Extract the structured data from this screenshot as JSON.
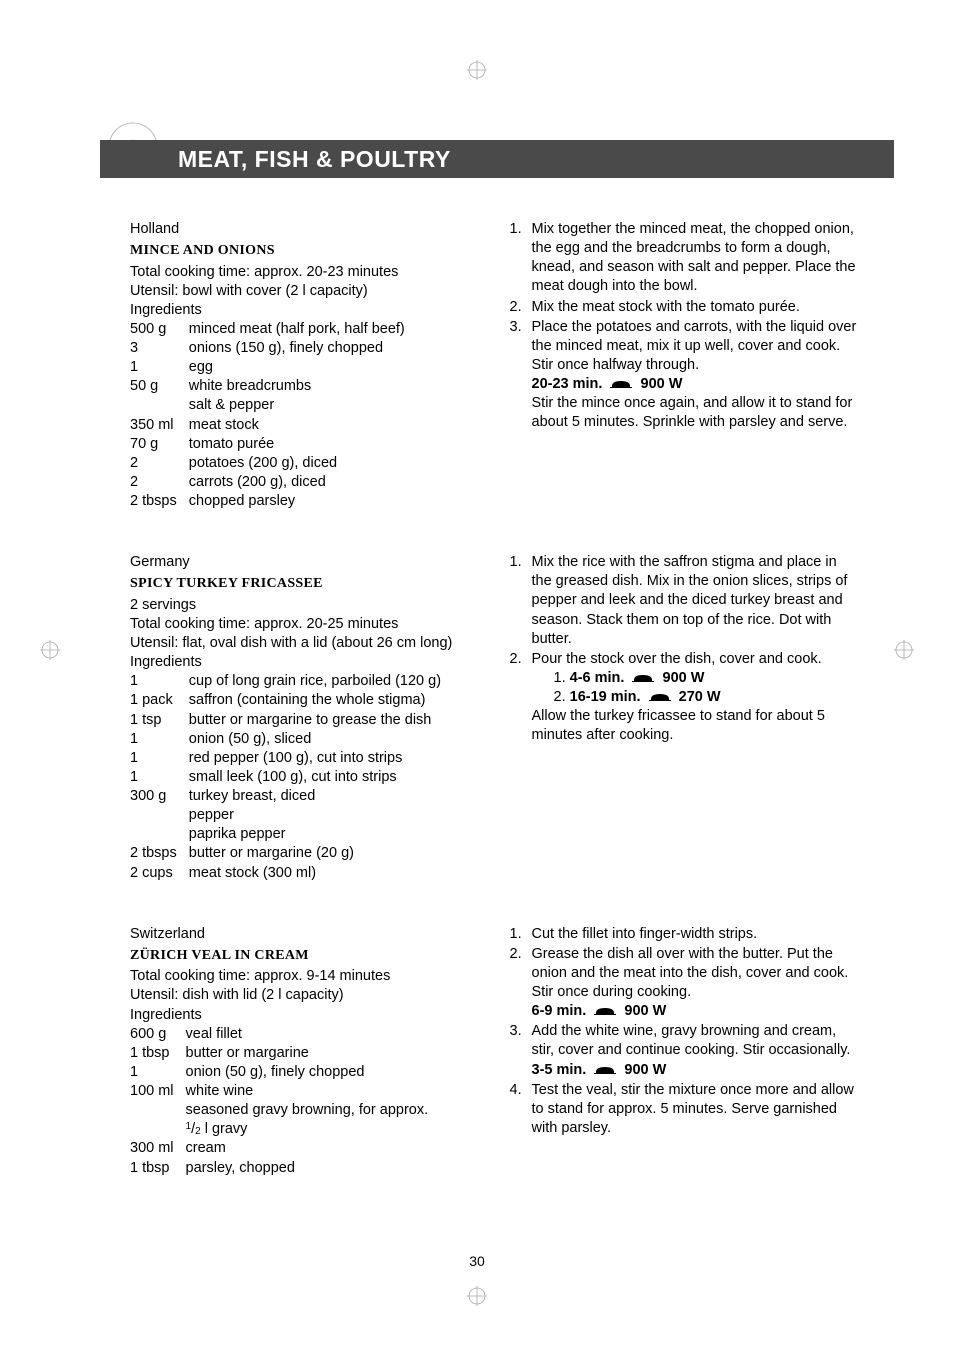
{
  "header": {
    "title": "MEAT, FISH & POULTRY"
  },
  "page_number": "30",
  "recipes": [
    {
      "country": "Holland",
      "name": "MINCE AND ONIONS",
      "meta": [
        "Total cooking time: approx. 20-23 minutes",
        "Utensil: bowl with cover (2 l capacity)",
        "Ingredients"
      ],
      "ingredients": [
        {
          "q": "500 g",
          "t": "minced meat (half pork, half beef)"
        },
        {
          "q": "3",
          "t": "onions (150 g), finely chopped"
        },
        {
          "q": "1",
          "t": "egg"
        },
        {
          "q": "50 g",
          "t": "white breadcrumbs"
        },
        {
          "q": "",
          "t": "salt & pepper"
        },
        {
          "q": "350 ml",
          "t": "meat stock"
        },
        {
          "q": "70 g",
          "t": "tomato purée"
        },
        {
          "q": "2",
          "t": "potatoes (200 g), diced"
        },
        {
          "q": "2",
          "t": "carrots (200 g), diced"
        },
        {
          "q": "2 tbsps",
          "t": "chopped parsley"
        }
      ],
      "steps": [
        {
          "text": "Mix together the minced meat, the chopped onion, the egg and the breadcrumbs to form a dough, knead, and season with salt and pepper. Place the meat dough into the bowl."
        },
        {
          "text": "Mix the meat stock with the tomato purée."
        },
        {
          "text": "Place the potatoes and carrots, with the liquid over the minced meat, mix it up well, cover and cook. Stir once halfway through.",
          "power": [
            {
              "time": "20-23 min.",
              "watt": "900 W"
            }
          ],
          "after": "Stir the mince once again, and allow it to stand for about 5 minutes. Sprinkle with parsley and serve."
        }
      ]
    },
    {
      "country": "Germany",
      "name": "SPICY TURKEY FRICASSEE",
      "meta": [
        "2 servings",
        "Total cooking time: approx. 20-25 minutes",
        "Utensil: flat, oval dish with a lid (about 26 cm long)",
        "Ingredients"
      ],
      "ingredients": [
        {
          "q": "1",
          "t": "cup of long grain rice, parboiled (120 g)"
        },
        {
          "q": "1 pack",
          "t": "saffron (containing the whole stigma)"
        },
        {
          "q": "1 tsp",
          "t": "butter or margarine to grease the dish"
        },
        {
          "q": "1",
          "t": "onion (50 g), sliced"
        },
        {
          "q": "1",
          "t": "red pepper (100 g), cut into strips"
        },
        {
          "q": "1",
          "t": "small leek (100 g), cut into strips"
        },
        {
          "q": "300 g",
          "t": "turkey breast, diced"
        },
        {
          "q": "",
          "t": "pepper"
        },
        {
          "q": "",
          "t": "paprika pepper"
        },
        {
          "q": "2 tbsps",
          "t": "butter or margarine (20 g)"
        },
        {
          "q": "2 cups",
          "t": "meat stock (300 ml)"
        }
      ],
      "steps": [
        {
          "text": "Mix the rice with the saffron stigma and place in the greased dish. Mix in the onion slices, strips of pepper and leek and the diced turkey breast and season. Stack them on top of the rice. Dot with butter."
        },
        {
          "text": "Pour the stock over the dish, cover and cook.",
          "power_numbered": [
            {
              "n": "1.",
              "time": "4-6 min.",
              "watt": "900 W"
            },
            {
              "n": "2.",
              "time": "16-19 min.",
              "watt": "270 W"
            }
          ],
          "after": "Allow the turkey fricassee to stand for about 5 minutes after cooking."
        }
      ]
    },
    {
      "country": "Switzerland",
      "name": "ZÜRICH VEAL IN CREAM",
      "meta": [
        "Total cooking time: approx. 9-14 minutes",
        "Utensil: dish with lid (2 l capacity)",
        "Ingredients"
      ],
      "ingredients": [
        {
          "q": "600 g",
          "t": "veal fillet"
        },
        {
          "q": "1 tbsp",
          "t": "butter or margarine"
        },
        {
          "q": "1",
          "t": "onion (50 g), finely chopped"
        },
        {
          "q": "100 ml",
          "t": "white wine"
        },
        {
          "q": "",
          "t": "seasoned gravy browning, for approx."
        },
        {
          "q": "",
          "t": "__FRAC__ l gravy"
        },
        {
          "q": "300 ml",
          "t": "cream"
        },
        {
          "q": "1 tbsp",
          "t": "parsley, chopped"
        }
      ],
      "steps": [
        {
          "text": "Cut the fillet into finger-width strips."
        },
        {
          "text": "Grease the dish all over with the butter. Put the onion and the meat into the dish, cover and cook. Stir once during cooking.",
          "power": [
            {
              "time": "6-9 min.",
              "watt": "900 W"
            }
          ]
        },
        {
          "text": "Add the white wine, gravy browning and cream, stir, cover and continue cooking. Stir occasionally.",
          "power": [
            {
              "time": "3-5 min.",
              "watt": "900 W"
            }
          ]
        },
        {
          "text": "Test the veal, stir the mixture once more and allow to stand for approx. 5 minutes. Serve garnished with parsley."
        }
      ]
    }
  ]
}
